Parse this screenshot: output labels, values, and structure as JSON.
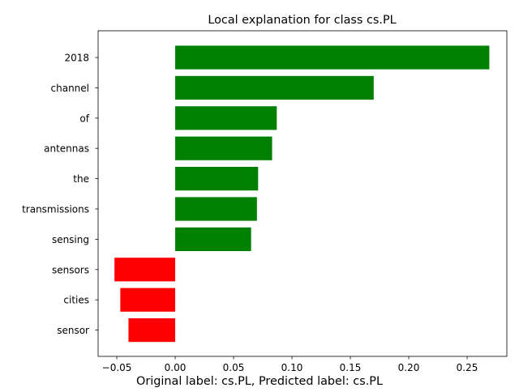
{
  "chart_data": {
    "type": "bar",
    "orientation": "horizontal",
    "title": "Local explanation for class cs.PL",
    "caption": "Original label: cs.PL, Predicted label: cs.PL",
    "xlabel": "",
    "ylabel": "",
    "xlim": [
      -0.066,
      0.284
    ],
    "xticks": [
      -0.05,
      0.0,
      0.05,
      0.1,
      0.15,
      0.2,
      0.25
    ],
    "xtick_labels": [
      "−0.05",
      "0.00",
      "0.05",
      "0.10",
      "0.15",
      "0.20",
      "0.25"
    ],
    "categories": [
      "2018",
      "channel",
      "of",
      "antennas",
      "the",
      "transmissions",
      "sensing",
      "sensors",
      "cities",
      "sensor"
    ],
    "values": [
      0.269,
      0.17,
      0.087,
      0.083,
      0.071,
      0.07,
      0.065,
      -0.052,
      -0.047,
      -0.04
    ],
    "positive_color": "#008000",
    "negative_color": "#ff0000",
    "grid": false,
    "legend": "none"
  }
}
